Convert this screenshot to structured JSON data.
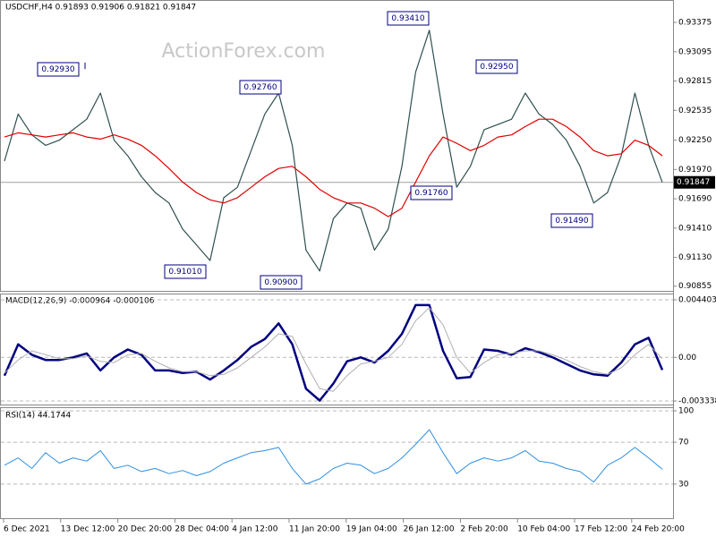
{
  "chart_data": [
    {
      "type": "line",
      "title": "USDCHF,H4 0.91893 0.91906 0.91821 0.91847",
      "watermark": "ActionForex.com",
      "ylim": [
        0.9081,
        0.93589
      ],
      "yticks": [
        0.90855,
        {
          "value": 0.9113,
          "label": "0.91130"
        },
        {
          "value": 0.9141,
          "label": "0.91410"
        },
        {
          "value": 0.9169,
          "label": "0.91690"
        },
        {
          "value": 0.9197,
          "label": "0.91970"
        },
        {
          "value": 0.9225,
          "label": "0.92250"
        },
        0.92535,
        0.92815,
        0.93095,
        0.93375
      ],
      "grid": false,
      "last": 0.91847,
      "series": [
        {
          "color": "#2f4f4f",
          "values": [
            0.9205,
            0.925,
            0.923,
            0.922,
            0.9225,
            0.9235,
            0.9245,
            0.927,
            0.9225,
            0.921,
            0.919,
            0.9175,
            0.9165,
            0.914,
            0.9125,
            0.911,
            0.917,
            0.918,
            0.9215,
            0.925,
            0.927,
            0.922,
            0.912,
            0.91,
            0.915,
            0.9165,
            0.916,
            0.912,
            0.914,
            0.92,
            0.929,
            0.933,
            0.925,
            0.918,
            0.92,
            0.9235,
            0.924,
            0.9245,
            0.927,
            0.925,
            0.924,
            0.9225,
            0.92,
            0.9165,
            0.9175,
            0.921,
            0.927,
            0.922,
            0.91847
          ]
        },
        {
          "color": "#e00000",
          "values": [
            0.9228,
            0.9232,
            0.923,
            0.9228,
            0.923,
            0.9232,
            0.9228,
            0.9226,
            0.923,
            0.9226,
            0.922,
            0.921,
            0.9198,
            0.9185,
            0.9175,
            0.9168,
            0.9165,
            0.917,
            0.918,
            0.919,
            0.9198,
            0.92,
            0.919,
            0.9178,
            0.917,
            0.9165,
            0.9165,
            0.916,
            0.9152,
            0.916,
            0.9185,
            0.921,
            0.9228,
            0.9222,
            0.9215,
            0.922,
            0.9228,
            0.923,
            0.9238,
            0.9245,
            0.9245,
            0.9238,
            0.9228,
            0.9215,
            0.921,
            0.9212,
            0.9225,
            0.922,
            0.921
          ]
        }
      ],
      "annotations": [
        {
          "value": 0.9293,
          "label": "0.92930"
        },
        {
          "value": 0.9276,
          "label": "0.92760"
        },
        {
          "value": 0.9341,
          "label": "0.93410"
        },
        {
          "value": 0.9295,
          "label": "0.92950"
        },
        {
          "value": 0.9101,
          "label": "0.91010"
        },
        {
          "value": 0.909,
          "label": "0.90900"
        },
        {
          "value": 0.9176,
          "label": "0.91760"
        },
        {
          "value": 0.9149,
          "label": "0.91490"
        }
      ]
    },
    {
      "type": "line",
      "title": "MACD(12,26,9) -0.000964 -0.000106",
      "ylim": [
        -0.00361,
        0.00488
      ],
      "yticks": [
        0.004403,
        {
          "value": 0,
          "label": "0.00"
        },
        -0.003338
      ],
      "grid": true,
      "series": [
        {
          "color": "#000080",
          "values": [
            -0.0014,
            0.001,
            0.0002,
            -0.0002,
            -0.0002,
            0.0,
            0.0003,
            -0.001,
            0.0,
            0.0006,
            0.0002,
            -0.001,
            -0.001,
            -0.0012,
            -0.0011,
            -0.0017,
            -0.001,
            -0.0002,
            0.0008,
            0.0014,
            0.0026,
            0.001,
            -0.0024,
            -0.0033,
            -0.002,
            -0.0003,
            0.0,
            -0.0004,
            0.0005,
            0.0018,
            0.004,
            0.004,
            0.0005,
            -0.0016,
            -0.0015,
            0.0006,
            0.0005,
            0.0002,
            0.0007,
            0.0004,
            0.0,
            -0.0005,
            -0.001,
            -0.0013,
            -0.0014,
            -0.0004,
            0.001,
            0.0015,
            -0.000964
          ]
        },
        {
          "color": "#b0b0b0",
          "values": [
            -0.0012,
            -0.0002,
            0.0005,
            0.0002,
            -0.0001,
            -0.0001,
            0.0001,
            -0.0003,
            -0.0004,
            0.0002,
            0.0003,
            -0.0003,
            -0.0008,
            -0.0011,
            -0.0011,
            -0.0014,
            -0.0013,
            -0.0008,
            0.0,
            0.0008,
            0.0018,
            0.0016,
            -0.0005,
            -0.0024,
            -0.0026,
            -0.0014,
            -0.0005,
            -0.0003,
            0.0,
            0.001,
            0.0028,
            0.0038,
            0.0025,
            0.0,
            -0.0012,
            -0.0004,
            0.0002,
            0.0003,
            0.0005,
            0.0005,
            0.0002,
            -0.0002,
            -0.0007,
            -0.0011,
            -0.0013,
            -0.0008,
            0.0002,
            0.001,
            -0.000106
          ]
        }
      ]
    },
    {
      "type": "line",
      "title": "RSI(14) 44.1744",
      "ylim": [
        0,
        100
      ],
      "yticks": [
        100,
        70,
        30
      ],
      "grid": true,
      "series": [
        {
          "color": "#2f8fe0",
          "values": [
            48,
            55,
            45,
            60,
            50,
            55,
            52,
            62,
            45,
            48,
            42,
            45,
            40,
            43,
            38,
            42,
            50,
            55,
            60,
            62,
            65,
            45,
            30,
            35,
            45,
            50,
            48,
            40,
            45,
            55,
            68,
            82,
            60,
            40,
            50,
            55,
            52,
            55,
            62,
            52,
            50,
            45,
            42,
            32,
            48,
            55,
            65,
            55,
            44.1744
          ]
        }
      ],
      "xlabels": [
        "6 Dec 2021",
        "13 Dec 12:00",
        "20 Dec 20:00",
        "28 Dec 04:00",
        "4 Jan 12:00",
        "11 Jan 20:00",
        "19 Jan 04:00",
        "26 Jan 12:00",
        "2 Feb 20:00",
        "10 Feb 04:00",
        "17 Feb 12:00",
        "24 Feb 20:00"
      ]
    }
  ]
}
